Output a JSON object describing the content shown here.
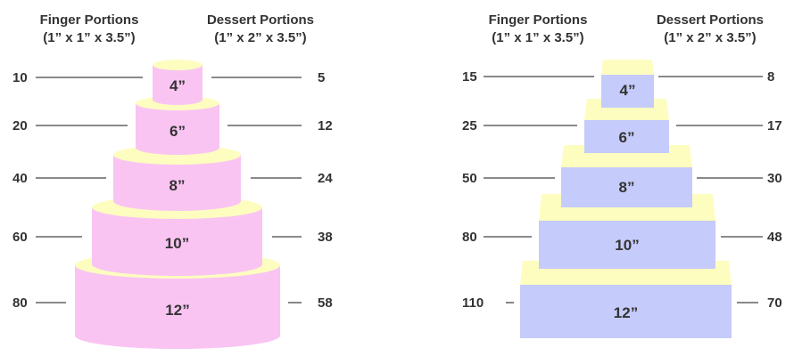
{
  "colors": {
    "pink": "#f9c4f2",
    "yellow": "#fdfdc0",
    "blue": "#c5cbfa",
    "text": "#333333"
  },
  "round_cake": {
    "finger_header": "Finger Portions",
    "finger_sub": "(1” x 1” x 3.5”)",
    "dessert_header": "Dessert Portions",
    "dessert_sub": "(1” x 2” x 3.5”)",
    "tiers": [
      {
        "size": "4”",
        "finger": "10",
        "dessert": "5"
      },
      {
        "size": "6”",
        "finger": "20",
        "dessert": "12"
      },
      {
        "size": "8”",
        "finger": "40",
        "dessert": "24"
      },
      {
        "size": "10”",
        "finger": "60",
        "dessert": "38"
      },
      {
        "size": "12”",
        "finger": "80",
        "dessert": "58"
      }
    ]
  },
  "square_cake": {
    "finger_header": "Finger Portions",
    "finger_sub": "(1” x 1” x 3.5”)",
    "dessert_header": "Dessert Portions",
    "dessert_sub": "(1” x 2” x 3.5”)",
    "tiers": [
      {
        "size": "4”",
        "finger": "15",
        "dessert": "8"
      },
      {
        "size": "6”",
        "finger": "25",
        "dessert": "17"
      },
      {
        "size": "8”",
        "finger": "50",
        "dessert": "30"
      },
      {
        "size": "10”",
        "finger": "80",
        "dessert": "48"
      },
      {
        "size": "12”",
        "finger": "110",
        "dessert": "70"
      }
    ]
  }
}
